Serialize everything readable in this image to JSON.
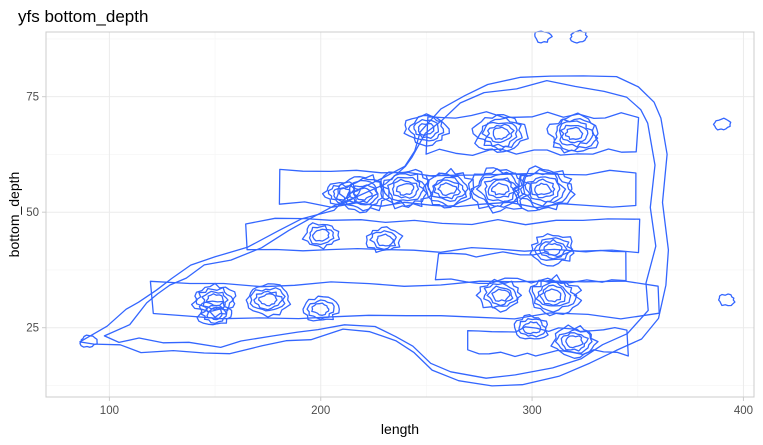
{
  "chart_data": {
    "type": "contour",
    "title": "yfs bottom_depth",
    "xlabel": "length",
    "ylabel": "bottom_depth",
    "xlim": [
      70,
      405
    ],
    "ylim": [
      10,
      89
    ],
    "x_ticks": [
      100,
      200,
      300,
      400
    ],
    "y_ticks": [
      25,
      50,
      75
    ],
    "grid": true,
    "line_color": "#3366ff",
    "density_peaks": [
      {
        "x": 150,
        "y": 31,
        "level": 4
      },
      {
        "x": 150,
        "y": 28,
        "level": 3
      },
      {
        "x": 175,
        "y": 31,
        "level": 4
      },
      {
        "x": 200,
        "y": 29,
        "level": 3
      },
      {
        "x": 210,
        "y": 54,
        "level": 3
      },
      {
        "x": 220,
        "y": 54,
        "level": 5
      },
      {
        "x": 240,
        "y": 55,
        "level": 5
      },
      {
        "x": 250,
        "y": 68,
        "level": 4
      },
      {
        "x": 260,
        "y": 55,
        "level": 5
      },
      {
        "x": 285,
        "y": 55,
        "level": 6
      },
      {
        "x": 305,
        "y": 55,
        "level": 6
      },
      {
        "x": 285,
        "y": 67,
        "level": 5
      },
      {
        "x": 320,
        "y": 67,
        "level": 5
      },
      {
        "x": 200,
        "y": 45,
        "level": 3
      },
      {
        "x": 230,
        "y": 44,
        "level": 3
      },
      {
        "x": 310,
        "y": 42,
        "level": 4
      },
      {
        "x": 310,
        "y": 32,
        "level": 5
      },
      {
        "x": 285,
        "y": 32,
        "level": 4
      },
      {
        "x": 300,
        "y": 25,
        "level": 3
      },
      {
        "x": 320,
        "y": 22,
        "level": 4
      },
      {
        "x": 305,
        "y": 88,
        "level": 1
      },
      {
        "x": 322,
        "y": 88,
        "level": 1
      },
      {
        "x": 390,
        "y": 69,
        "level": 1
      },
      {
        "x": 392,
        "y": 31,
        "level": 1
      },
      {
        "x": 90,
        "y": 22,
        "level": 1
      }
    ]
  }
}
